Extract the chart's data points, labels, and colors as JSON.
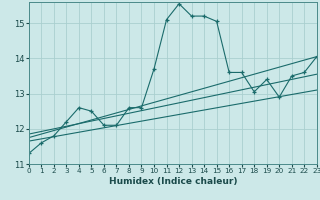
{
  "xlabel": "Humidex (Indice chaleur)",
  "background_color": "#cce8e8",
  "grid_color": "#aacfcf",
  "line_color": "#1a6b6b",
  "xmin": 0,
  "xmax": 23,
  "ymin": 11,
  "ymax": 15.6,
  "series1_x": [
    0,
    1,
    2,
    3,
    4,
    5,
    6,
    7,
    8,
    9,
    10,
    11,
    12,
    13,
    14,
    15,
    16,
    17,
    18,
    19,
    20,
    21,
    22,
    23
  ],
  "series1_y": [
    11.3,
    11.6,
    11.8,
    12.2,
    12.6,
    12.5,
    12.1,
    12.1,
    12.6,
    12.6,
    13.7,
    15.1,
    15.55,
    15.2,
    15.2,
    15.05,
    13.6,
    13.6,
    13.05,
    13.4,
    12.9,
    13.5,
    13.6,
    14.05
  ],
  "series2_x": [
    0,
    23
  ],
  "series2_y": [
    11.75,
    14.05
  ],
  "series3_x": [
    0,
    23
  ],
  "series3_y": [
    11.85,
    13.55
  ],
  "series4_x": [
    0,
    23
  ],
  "series4_y": [
    11.65,
    13.1
  ],
  "yticks": [
    11,
    12,
    13,
    14,
    15
  ],
  "xticks": [
    0,
    1,
    2,
    3,
    4,
    5,
    6,
    7,
    8,
    9,
    10,
    11,
    12,
    13,
    14,
    15,
    16,
    17,
    18,
    19,
    20,
    21,
    22,
    23
  ]
}
